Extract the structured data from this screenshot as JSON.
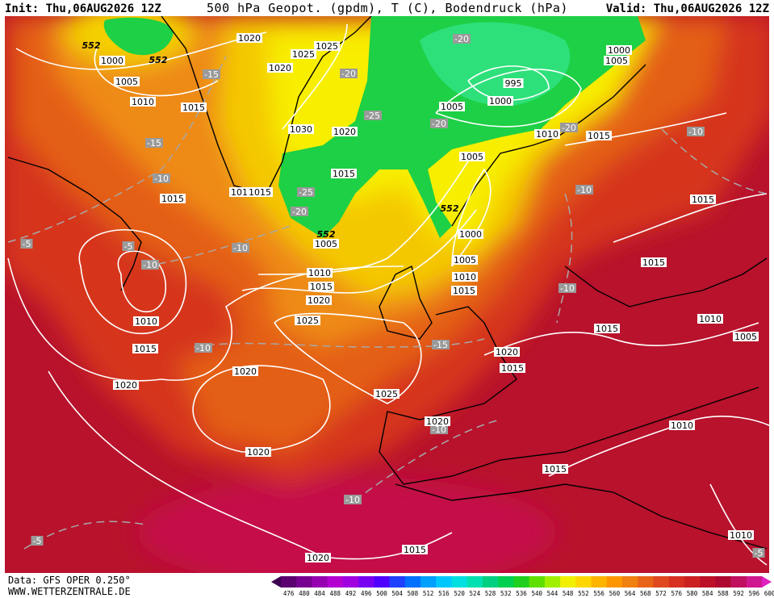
{
  "header": {
    "init": "Init: Thu,06AUG2026 12Z",
    "title": "500 hPa Geopot. (gpdm), T (C), Bodendruck (hPa)",
    "valid": "Valid: Thu,06AUG2026 12Z"
  },
  "footer": {
    "source": "Data: GFS OPER 0.250°",
    "site": "WWW.WETTERZENTRALE.DE"
  },
  "map_labels": {
    "isobars": [
      "1020",
      "1025",
      "1025",
      "1000",
      "1005",
      "1010",
      "1015",
      "1020",
      "1030",
      "1020",
      "1015",
      "1011",
      "1015",
      "1015",
      "1005",
      "1010",
      "1015",
      "1020",
      "1025",
      "1010",
      "1015",
      "1020",
      "1020",
      "1025",
      "1020",
      "1020",
      "1015",
      "1020",
      "1020",
      "1015",
      "1015",
      "1010",
      "1015",
      "1010",
      "1005",
      "1015",
      "1015",
      "1015",
      "1010",
      "1000",
      "1005",
      "995",
      "1000",
      "1005",
      "1005",
      "1000",
      "1005",
      "1010",
      "1015",
      "1010"
    ],
    "temperatures": [
      "-20",
      "-20",
      "-25",
      "-20",
      "-20",
      "-15",
      "-15",
      "-10",
      "-25",
      "-20",
      "-10",
      "-5",
      "-5",
      "-10",
      "-10",
      "-10",
      "-10",
      "-10",
      "-15",
      "-10",
      "-10",
      "-5",
      "-5"
    ],
    "heights": [
      "552",
      "552",
      "552",
      "552"
    ]
  },
  "colorbar": {
    "labels": [
      476,
      480,
      484,
      488,
      492,
      496,
      500,
      504,
      508,
      512,
      516,
      520,
      524,
      528,
      532,
      536,
      540,
      544,
      548,
      552,
      556,
      560,
      564,
      568,
      572,
      576,
      580,
      584,
      588,
      592,
      596,
      600
    ],
    "colors": [
      "#3c0050",
      "#5a0070",
      "#780090",
      "#9600b0",
      "#b400d0",
      "#a000e0",
      "#7800f0",
      "#5000ff",
      "#2040ff",
      "#0070ff",
      "#00a0ff",
      "#00c8ff",
      "#00e0e0",
      "#00e0b0",
      "#00d080",
      "#00d050",
      "#20d020",
      "#60e000",
      "#a0f000",
      "#f0f000",
      "#ffd700",
      "#ffb400",
      "#ff9600",
      "#f08010",
      "#e86418",
      "#e04820",
      "#d83020",
      "#cc2020",
      "#bc1028",
      "#ac0830",
      "#c01060",
      "#d01890",
      "#e020c0"
    ]
  }
}
